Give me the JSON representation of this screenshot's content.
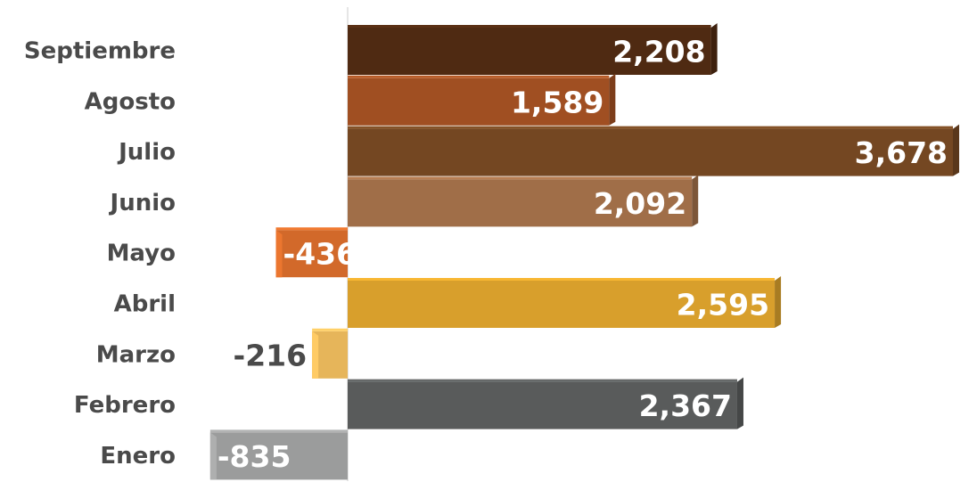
{
  "chart_data": {
    "type": "bar",
    "orientation": "horizontal",
    "categories": [
      "Septiembre",
      "Agosto",
      "Julio",
      "Junio",
      "Mayo",
      "Abril",
      "Marzo",
      "Febrero",
      "Enero"
    ],
    "values": [
      2208,
      1589,
      3678,
      2092,
      -436,
      2595,
      -216,
      2367,
      -835
    ],
    "value_labels": [
      "2,208",
      "1,589",
      "3,678",
      "2,092",
      "-436",
      "2,595",
      "-216",
      "2,367",
      "-835"
    ],
    "colors": [
      "#4f2a12",
      "#a04f22",
      "#744722",
      "#a06e48",
      "#d2692a",
      "#d89f2c",
      "#e6b55a",
      "#595b5b",
      "#9b9c9c"
    ],
    "label_colors": [
      "#ffffff",
      "#ffffff",
      "#ffffff",
      "#ffffff",
      "#ffffff",
      "#ffffff",
      "#4a4a4a",
      "#ffffff",
      "#ffffff"
    ],
    "xlim": [
      -835,
      3678
    ],
    "grid": false,
    "legend": "none"
  }
}
